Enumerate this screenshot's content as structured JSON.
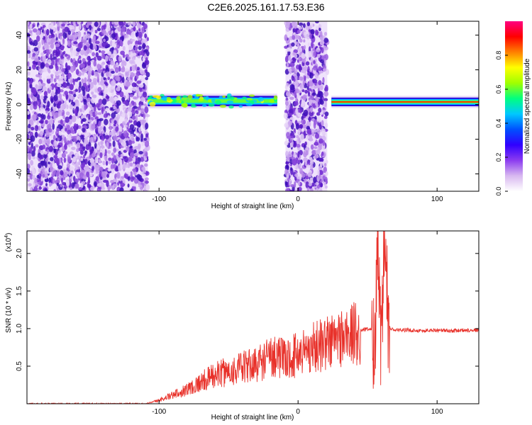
{
  "title": "C2E6.2025.161.17.53.E36",
  "chart_data": [
    {
      "type": "heatmap",
      "xlabel": "Height of straight line (km)",
      "ylabel": "Frequency (Hz)",
      "xlim": [
        -195,
        130
      ],
      "ylim": [
        -50,
        48
      ],
      "xticks": [
        -100,
        0,
        100
      ],
      "yticks": [
        -40,
        -20,
        0,
        20,
        40
      ],
      "colorbar": {
        "label": "Normalized spectral amplitude",
        "range": [
          0,
          1
        ],
        "ticks": [
          0.0,
          0.2,
          0.4,
          0.6,
          0.8
        ],
        "colors": [
          "#ffffff",
          "#d8b8f0",
          "#8c3cf0",
          "#3000ff",
          "#0050ff",
          "#00c8ff",
          "#00ff80",
          "#a0ff00",
          "#ffff00",
          "#ff8000",
          "#ff0000",
          "#ff0080"
        ]
      },
      "regions": [
        {
          "kind": "noise",
          "x": [
            -195,
            -108
          ],
          "f": [
            -50,
            48
          ]
        },
        {
          "kind": "band",
          "x": [
            -108,
            -15
          ],
          "f_center": 2,
          "width": 6
        },
        {
          "kind": "noise",
          "x": [
            -9,
            21
          ],
          "f": [
            -50,
            48
          ]
        },
        {
          "kind": "band",
          "x": [
            24,
            130
          ],
          "f_center": 1.5,
          "width": 5
        }
      ]
    },
    {
      "type": "line",
      "xlabel": "Height of straight line (km)",
      "ylabel": "SNR (10 * v/v)",
      "scale_label": "(x10",
      "scale_exp": "4",
      "xlim": [
        -195,
        130
      ],
      "ylim": [
        0,
        2.3
      ],
      "xticks": [
        -100,
        0,
        100
      ],
      "yticks": [
        0.5,
        1.0,
        1.5,
        2.0
      ],
      "series": [
        {
          "color": "#e8312a",
          "x": [
            -195,
            -110,
            -100,
            -90,
            -80,
            -70,
            -60,
            -50,
            -40,
            -30,
            -20,
            -15,
            -10,
            0,
            10,
            20,
            30,
            40,
            50,
            55,
            58,
            60,
            62,
            65,
            70,
            80,
            90,
            100,
            110,
            120,
            130
          ],
          "y": [
            0.0,
            0.0,
            0.05,
            0.12,
            0.2,
            0.3,
            0.4,
            0.45,
            0.5,
            0.55,
            0.65,
            0.7,
            0.6,
            0.7,
            0.78,
            0.85,
            0.92,
            0.97,
            0.99,
            1.0,
            1.9,
            0.4,
            2.2,
            1.0,
            0.98,
            0.98,
            0.97,
            0.98,
            0.97,
            0.98,
            0.98
          ]
        }
      ]
    }
  ]
}
